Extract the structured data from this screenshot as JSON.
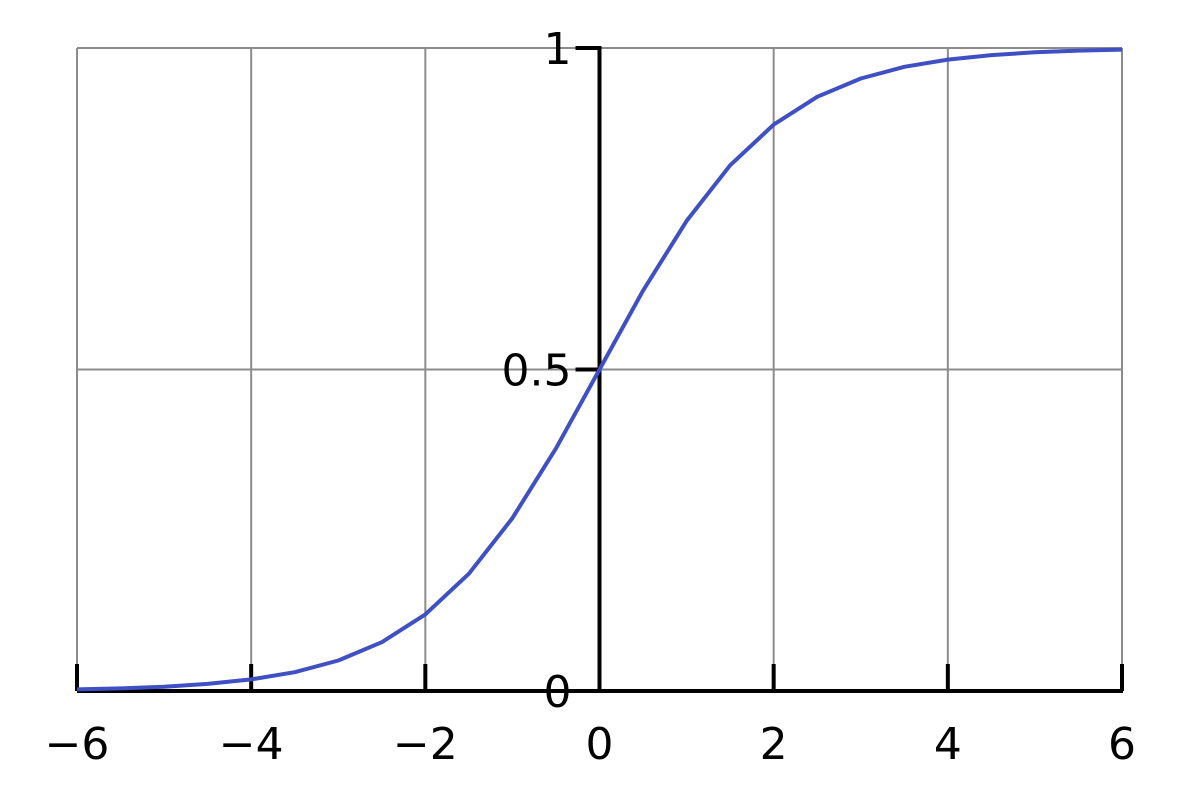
{
  "chart_data": {
    "type": "line",
    "title": "",
    "xlabel": "",
    "ylabel": "",
    "function": "1/(1+exp(-x))",
    "xlim": [
      -6,
      6
    ],
    "ylim": [
      0,
      1
    ],
    "x_ticks": [
      -6,
      -4,
      -2,
      0,
      2,
      4,
      6
    ],
    "x_tick_labels": [
      "−6",
      "−4",
      "−2",
      "0",
      "2",
      "4",
      "6"
    ],
    "y_ticks": [
      0,
      0.5,
      1
    ],
    "y_tick_labels": [
      "0",
      "0.5",
      "1"
    ],
    "grid": true,
    "series": [
      {
        "x": [
          -6,
          -5.5,
          -5,
          -4.5,
          -4,
          -3.5,
          -3,
          -2.5,
          -2,
          -1.5,
          -1,
          -0.5,
          0,
          0.5,
          1,
          1.5,
          2,
          2.5,
          3,
          3.5,
          4,
          4.5,
          5,
          5.5,
          6
        ],
        "y": [
          0.0025,
          0.0041,
          0.0067,
          0.011,
          0.018,
          0.0293,
          0.0474,
          0.0759,
          0.1192,
          0.1824,
          0.2689,
          0.3775,
          0.5,
          0.6225,
          0.7311,
          0.8176,
          0.8808,
          0.9241,
          0.9526,
          0.9707,
          0.982,
          0.989,
          0.9933,
          0.9959,
          0.9975
        ]
      }
    ],
    "colors": {
      "curve": "#3f4fc4",
      "grid": "#8c8c8c",
      "axis": "#000000"
    }
  }
}
